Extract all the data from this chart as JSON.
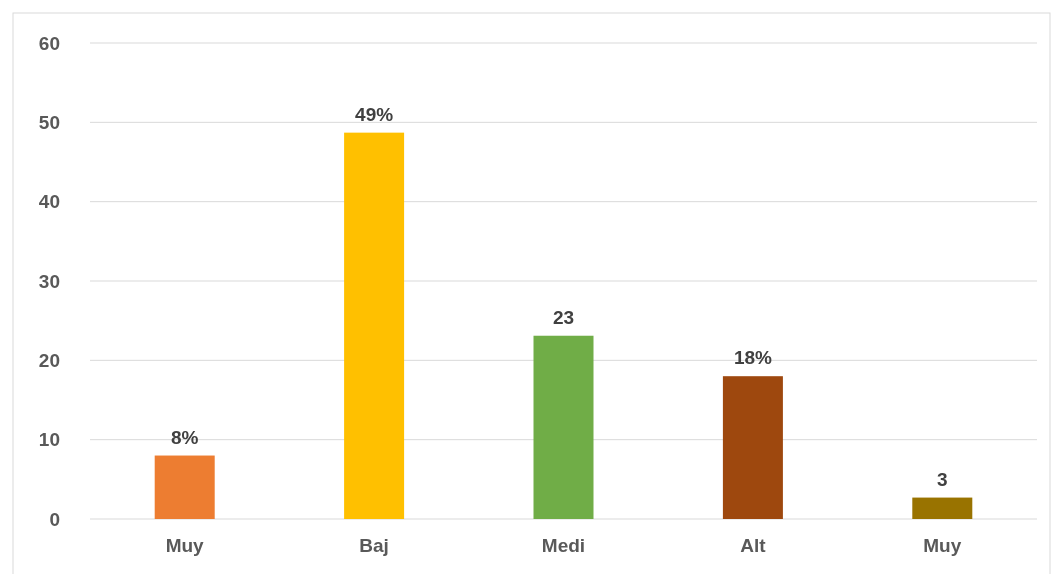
{
  "chart_data": {
    "type": "bar",
    "categories": [
      "Muy",
      "Baj",
      "Medi",
      "Alt",
      "Muy"
    ],
    "values": [
      8,
      48.7,
      23.1,
      18,
      2.7
    ],
    "colors": [
      "#ed7d31",
      "#ffc000",
      "#70ad47",
      "#9e480e",
      "#997300"
    ],
    "value_labels": [
      "8%",
      "49%",
      "23",
      "18%",
      "3"
    ],
    "ylim": [
      0,
      60
    ],
    "yticks": [
      0,
      10,
      20,
      30,
      40,
      50,
      60
    ],
    "grid": "y"
  }
}
